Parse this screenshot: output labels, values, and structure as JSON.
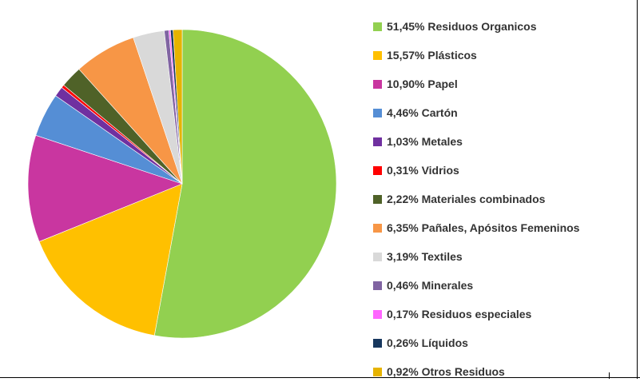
{
  "chart_data": {
    "type": "pie",
    "title": "",
    "slices": [
      {
        "label": "51,45% Residuos Organicos",
        "value": 51.45,
        "color": "#92d050"
      },
      {
        "label": "15,57% Plásticos",
        "value": 15.57,
        "color": "#ffc000"
      },
      {
        "label": "10,90% Papel",
        "value": 10.9,
        "color": "#c936a0"
      },
      {
        "label": "4,46% Cartón",
        "value": 4.46,
        "color": "#558ed5"
      },
      {
        "label": "1,03% Metales",
        "value": 1.03,
        "color": "#7030a0"
      },
      {
        "label": "0,31% Vidrios",
        "value": 0.31,
        "color": "#ff0000"
      },
      {
        "label": "2,22% Materiales combinados",
        "value": 2.22,
        "color": "#4f6228"
      },
      {
        "label": "6,35% Pañales, Apósitos Femeninos",
        "value": 6.35,
        "color": "#f79646"
      },
      {
        "label": "3,19% Textiles",
        "value": 3.19,
        "color": "#d9d9d9"
      },
      {
        "label": "0,46% Minerales",
        "value": 0.46,
        "color": "#8064a2"
      },
      {
        "label": "0,17% Residuos especiales",
        "value": 0.17,
        "color": "#ff66ff"
      },
      {
        "label": "0,26% Líquidos",
        "value": 0.26,
        "color": "#17375e"
      },
      {
        "label": "0,92% Otros Residuos",
        "value": 0.92,
        "color": "#e6b300"
      }
    ],
    "legend_position": "right"
  }
}
